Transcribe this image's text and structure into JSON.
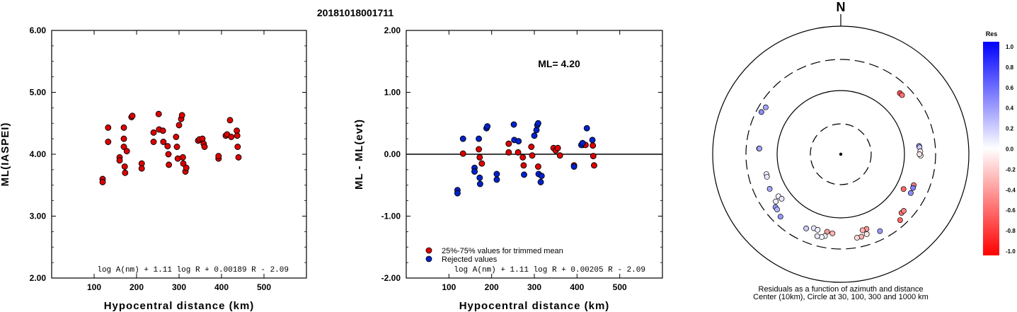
{
  "title": "20181018001711",
  "chart_data": [
    {
      "type": "scatter",
      "ylabel": "ML(IASPEI)",
      "xlabel": "Hypocentral distance (km)",
      "xlim": [
        0,
        600
      ],
      "ylim": [
        2.0,
        6.0
      ],
      "x_ticks": [
        "100",
        "200",
        "300",
        "400",
        "500"
      ],
      "y_ticks": [
        "2.00",
        "3.00",
        "4.00",
        "5.00",
        "6.00"
      ],
      "formula": "log A(nm) + 1.11 log R + 0.00189 R - 2.09",
      "series": [
        {
          "color": "#dd0000",
          "points": [
            [
              120,
              3.6
            ],
            [
              120,
              3.55
            ],
            [
              133,
              4.43
            ],
            [
              133,
              4.2
            ],
            [
              160,
              3.95
            ],
            [
              160,
              3.9
            ],
            [
              170,
              4.43
            ],
            [
              170,
              4.25
            ],
            [
              170,
              4.12
            ],
            [
              172,
              3.8
            ],
            [
              173,
              3.7
            ],
            [
              177,
              4.05
            ],
            [
              188,
              4.6
            ],
            [
              190,
              4.62
            ],
            [
              212,
              3.85
            ],
            [
              212,
              3.77
            ],
            [
              240,
              4.35
            ],
            [
              240,
              4.2
            ],
            [
              252,
              4.65
            ],
            [
              253,
              4.4
            ],
            [
              262,
              4.38
            ],
            [
              263,
              4.2
            ],
            [
              273,
              4.13
            ],
            [
              275,
              4.0
            ],
            [
              276,
              3.83
            ],
            [
              293,
              4.28
            ],
            [
              295,
              4.12
            ],
            [
              297,
              3.93
            ],
            [
              300,
              4.47
            ],
            [
              305,
              4.57
            ],
            [
              307,
              4.63
            ],
            [
              309,
              3.95
            ],
            [
              310,
              3.85
            ],
            [
              315,
              3.72
            ],
            [
              317,
              3.78
            ],
            [
              345,
              4.22
            ],
            [
              348,
              4.24
            ],
            [
              355,
              4.25
            ],
            [
              358,
              4.17
            ],
            [
              360,
              4.12
            ],
            [
              393,
              3.93
            ],
            [
              393,
              3.97
            ],
            [
              410,
              4.3
            ],
            [
              413,
              4.32
            ],
            [
              420,
              4.55
            ],
            [
              423,
              4.28
            ],
            [
              436,
              4.38
            ],
            [
              437,
              4.3
            ],
            [
              438,
              4.12
            ],
            [
              440,
              3.95
            ]
          ]
        }
      ]
    },
    {
      "type": "scatter",
      "ylabel": "ML - ML(evt)",
      "xlabel": "Hypocentral distance (km)",
      "xlim": [
        0,
        600
      ],
      "ylim": [
        -2.0,
        2.0
      ],
      "x_ticks": [
        "100",
        "200",
        "300",
        "400",
        "500"
      ],
      "y_ticks": [
        "-2.00",
        "-1.00",
        "0.00",
        "1.00",
        "2.00"
      ],
      "reference_line": 0.0,
      "annotation": "ML= 4.20",
      "formula": "log A(nm) + 1.11 log R + 0.00205 R - 2.09",
      "legend": [
        {
          "label": "25%-75% values for trimmed mean",
          "color": "#dd0000"
        },
        {
          "label": "Rejected values",
          "color": "#0022cc"
        }
      ],
      "series": [
        {
          "name": "25%-75% values for trimmed mean",
          "color": "#dd0000",
          "points": [
            [
              133,
              0.01
            ],
            [
              170,
              0.08
            ],
            [
              172,
              -0.05
            ],
            [
              177,
              -0.15
            ],
            [
              240,
              0.17
            ],
            [
              240,
              0.03
            ],
            [
              262,
              0.03
            ],
            [
              273,
              -0.05
            ],
            [
              275,
              -0.18
            ],
            [
              293,
              0.12
            ],
            [
              295,
              -0.02
            ],
            [
              309,
              -0.2
            ],
            [
              345,
              0.1
            ],
            [
              350,
              0.06
            ],
            [
              355,
              0.1
            ],
            [
              360,
              -0.02
            ],
            [
              393,
              -0.18
            ],
            [
              413,
              0.15
            ],
            [
              420,
              0.15
            ],
            [
              437,
              0.14
            ],
            [
              438,
              -0.03
            ],
            [
              440,
              -0.18
            ]
          ]
        },
        {
          "name": "Rejected values",
          "color": "#0022cc",
          "points": [
            [
              120,
              -0.58
            ],
            [
              120,
              -0.63
            ],
            [
              133,
              0.25
            ],
            [
              160,
              -0.22
            ],
            [
              160,
              -0.28
            ],
            [
              170,
              0.25
            ],
            [
              172,
              -0.38
            ],
            [
              173,
              -0.48
            ],
            [
              188,
              0.42
            ],
            [
              190,
              0.45
            ],
            [
              212,
              -0.32
            ],
            [
              212,
              -0.41
            ],
            [
              252,
              0.48
            ],
            [
              253,
              0.23
            ],
            [
              263,
              0.21
            ],
            [
              276,
              -0.33
            ],
            [
              300,
              0.3
            ],
            [
              305,
              0.39
            ],
            [
              307,
              0.47
            ],
            [
              309,
              0.5
            ],
            [
              310,
              -0.32
            ],
            [
              315,
              -0.45
            ],
            [
              317,
              -0.35
            ],
            [
              393,
              -0.2
            ],
            [
              410,
              0.15
            ],
            [
              413,
              0.18
            ],
            [
              423,
              0.42
            ],
            [
              436,
              0.23
            ]
          ]
        }
      ]
    },
    {
      "type": "polar-scatter",
      "north_label": "N",
      "caption_line1": "Residuals as a function of azimuth and distance",
      "caption_line2": "Center (10km), Circle at 30, 100, 300 and 1000 km",
      "rings_km": [
        30,
        100,
        300,
        1000
      ],
      "colorbar": {
        "title": "Res",
        "ticks": [
          "1.0",
          "0.8",
          "0.6",
          "0.4",
          "0.2",
          "0.0",
          "-0.2",
          "-0.4",
          "-0.6",
          "-0.8",
          "-1.0"
        ],
        "max_color": "#0000ff",
        "zero_color": "#ffffff",
        "min_color": "#ff0000"
      },
      "points": [
        {
          "azimuth": 298,
          "distance_km": 252,
          "residual": 0.45
        },
        {
          "azimuth": 302,
          "distance_km": 240,
          "residual": 0.35
        },
        {
          "azimuth": 44,
          "distance_km": 212,
          "residual": -0.7
        },
        {
          "azimuth": 46,
          "distance_km": 213,
          "residual": -0.55
        },
        {
          "azimuth": 84,
          "distance_km": 170,
          "residual": 0.4
        },
        {
          "azimuth": 85,
          "distance_km": 172,
          "residual": 0.22
        },
        {
          "azimuth": 88,
          "distance_km": 175,
          "residual": -0.05
        },
        {
          "azimuth": 91,
          "distance_km": 177,
          "residual": 0.0
        },
        {
          "azimuth": 90,
          "distance_km": 170,
          "residual": -0.1
        },
        {
          "azimuth": 274,
          "distance_km": 190,
          "residual": 0.5
        },
        {
          "azimuth": 274,
          "distance_km": 188,
          "residual": 0.35
        },
        {
          "azimuth": 255,
          "distance_km": 160,
          "residual": 0.05
        },
        {
          "azimuth": 253,
          "distance_km": 161,
          "residual": 0.1
        },
        {
          "azimuth": 244,
          "distance_km": 172,
          "residual": 0.35
        },
        {
          "azimuth": 119,
          "distance_km": 133,
          "residual": -0.6
        },
        {
          "azimuth": 113,
          "distance_km": 173,
          "residual": -0.5
        },
        {
          "azimuth": 115,
          "distance_km": 176,
          "residual": 0.5
        },
        {
          "azimuth": 119,
          "distance_km": 178,
          "residual": 0.45
        },
        {
          "azimuth": 236,
          "distance_km": 150,
          "residual": 0.05
        },
        {
          "azimuth": 233,
          "distance_km": 144,
          "residual": 0.1
        },
        {
          "azimuth": 234,
          "distance_km": 180,
          "residual": 0.05
        },
        {
          "azimuth": 231,
          "distance_km": 205,
          "residual": 0.4
        },
        {
          "azimuth": 229,
          "distance_km": 207,
          "residual": 0.3
        },
        {
          "azimuth": 134,
          "distance_km": 208,
          "residual": -0.55
        },
        {
          "azimuth": 132,
          "distance_km": 210,
          "residual": -0.5
        },
        {
          "azimuth": 224,
          "distance_km": 226,
          "residual": 0.4
        },
        {
          "azimuth": 138,
          "distance_km": 242,
          "residual": -0.6
        },
        {
          "azimuth": 161,
          "distance_km": 172,
          "residual": -0.4
        },
        {
          "azimuth": 164,
          "distance_km": 172,
          "residual": -0.3
        },
        {
          "azimuth": 190,
          "distance_km": 170,
          "residual": -0.4
        },
        {
          "azimuth": 186,
          "distance_km": 175,
          "residual": -0.3
        },
        {
          "azimuth": 200,
          "distance_km": 170,
          "residual": 0.1
        },
        {
          "azimuth": 197,
          "distance_km": 172,
          "residual": 0.05
        },
        {
          "azimuth": 162,
          "distance_km": 205,
          "residual": -0.1
        },
        {
          "azimuth": 166,
          "distance_km": 212,
          "residual": -0.3
        },
        {
          "azimuth": 169,
          "distance_km": 213,
          "residual": -0.15
        },
        {
          "azimuth": 191,
          "distance_km": 200,
          "residual": 0.05
        },
        {
          "azimuth": 193,
          "distance_km": 212,
          "residual": 0.0
        },
        {
          "azimuth": 196,
          "distance_km": 214,
          "residual": 0.1
        },
        {
          "azimuth": 205,
          "distance_km": 190,
          "residual": 0.2
        },
        {
          "azimuth": 153,
          "distance_km": 222,
          "residual": 0.4
        }
      ]
    }
  ]
}
